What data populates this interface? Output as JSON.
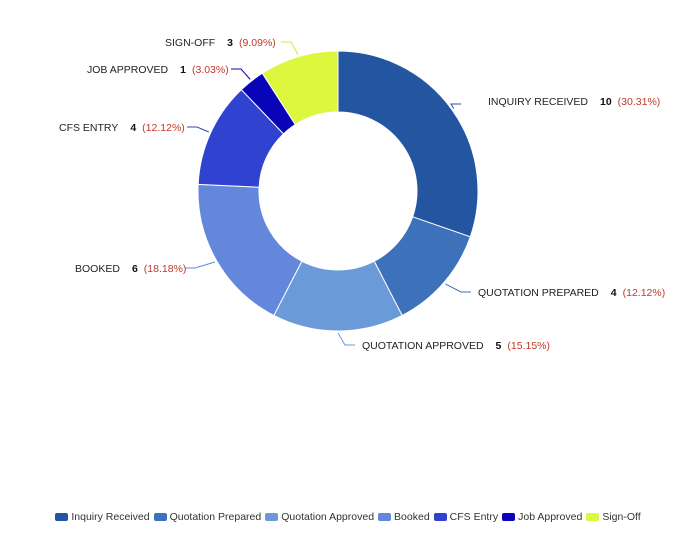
{
  "chart_data": {
    "type": "pie",
    "donut": true,
    "legend_position": "bottom",
    "slices": [
      {
        "key": "inquiry-received",
        "legend": "Inquiry Received",
        "label": "INQUIRY RECEIVED",
        "value": 10,
        "value_text": "10",
        "percent_text": "(30.31%)",
        "color": "#2355A0"
      },
      {
        "key": "quotation-prepared",
        "legend": "Quotation Prepared",
        "label": "QUOTATION PREPARED",
        "value": 4,
        "value_text": "4",
        "percent_text": "(12.12%)",
        "color": "#3D72BB"
      },
      {
        "key": "quotation-approved",
        "legend": "Quotation Approved",
        "label": "QUOTATION APPROVED",
        "value": 5,
        "value_text": "5",
        "percent_text": "(15.15%)",
        "color": "#6A9BD8"
      },
      {
        "key": "booked",
        "legend": "Booked",
        "label": "BOOKED",
        "value": 6,
        "value_text": "6",
        "percent_text": "(18.18%)",
        "color": "#6387DB"
      },
      {
        "key": "cfs-entry",
        "legend": "CFS Entry",
        "label": "CFS ENTRY",
        "value": 4,
        "value_text": "4",
        "percent_text": "(12.12%)",
        "color": "#3043D0"
      },
      {
        "key": "job-approved",
        "legend": "Job Approved",
        "label": "JOB APPROVED",
        "value": 1,
        "value_text": "1",
        "percent_text": "(3.03%)",
        "color": "#0A04B8"
      },
      {
        "key": "sign-off",
        "legend": "Sign-Off",
        "label": "SIGN-OFF",
        "value": 3,
        "value_text": "3",
        "percent_text": "(9.09%)",
        "color": "#DDF73E"
      }
    ]
  }
}
